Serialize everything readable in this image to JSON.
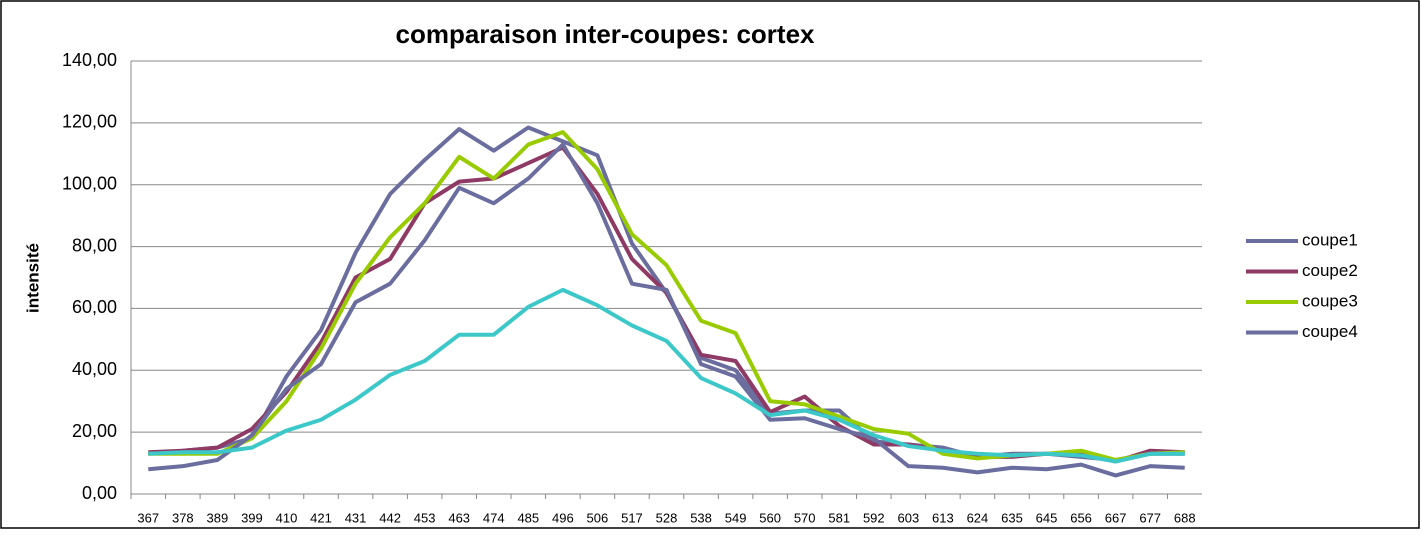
{
  "chart_data": {
    "type": "line",
    "title": "comparaison inter-coupes: cortex",
    "ylabel": "intensité",
    "categories": [
      "367",
      "378",
      "389",
      "399",
      "410",
      "421",
      "431",
      "442",
      "453",
      "463",
      "474",
      "485",
      "496",
      "506",
      "517",
      "528",
      "538",
      "549",
      "560",
      "570",
      "581",
      "592",
      "603",
      "613",
      "624",
      "635",
      "645",
      "656",
      "667",
      "677",
      "688"
    ],
    "series": [
      {
        "name": "coupe1",
        "color": "#6a6d9e",
        "values": [
          13,
          14,
          15,
          18,
          38,
          53,
          78,
          97,
          108,
          118,
          111,
          118.5,
          114,
          109.5,
          81,
          65,
          44,
          40,
          26,
          27,
          27,
          17,
          16,
          15,
          12,
          13,
          13,
          12,
          11,
          13,
          13
        ]
      },
      {
        "name": "coupe2",
        "color": "#8e3a64",
        "values": [
          13.5,
          14,
          15,
          21,
          33,
          49,
          70,
          76,
          94,
          101,
          102,
          107,
          112,
          97,
          76,
          65,
          45,
          43,
          26.5,
          31.5,
          22,
          16,
          16,
          14,
          12,
          12,
          13,
          13.5,
          10.5,
          14,
          13.5
        ]
      },
      {
        "name": "coupe3",
        "color": "#99cc00",
        "values": [
          13,
          13,
          13,
          18,
          30,
          47,
          68,
          83,
          94,
          109,
          102,
          113,
          117,
          105,
          84,
          74,
          56,
          52,
          30,
          29,
          25,
          21,
          19.5,
          13,
          11.5,
          12.5,
          13,
          14,
          11,
          13,
          13.5
        ]
      },
      {
        "name": "coupe4",
        "color": "#6a6d9e",
        "values": [
          8,
          9,
          11,
          19,
          34,
          42,
          62,
          68,
          82,
          99,
          94,
          102,
          113,
          94,
          68,
          66,
          42,
          38,
          24,
          24.5,
          21,
          18,
          9,
          8.5,
          7,
          8.5,
          8,
          9.5,
          6,
          9,
          8.5
        ]
      },
      {
        "name": null,
        "color": "#3cc8c8",
        "values": [
          13,
          13.5,
          13.5,
          15,
          20.5,
          24,
          30.5,
          38.5,
          43,
          51.5,
          51.5,
          60.5,
          66,
          61,
          54.5,
          49.5,
          37.5,
          32.5,
          25.5,
          27,
          24,
          19,
          15.5,
          14,
          13,
          12.5,
          13,
          12.5,
          10.5,
          13,
          13
        ]
      }
    ],
    "ylim": [
      0,
      140
    ],
    "yticks": [
      {
        "value": 0,
        "label": "0,00"
      },
      {
        "value": 20,
        "label": "20,00"
      },
      {
        "value": 40,
        "label": "40,00"
      },
      {
        "value": 60,
        "label": "60,00"
      },
      {
        "value": 80,
        "label": "80,00"
      },
      {
        "value": 100,
        "label": "100,00"
      },
      {
        "value": 120,
        "label": "120,00"
      },
      {
        "value": 140,
        "label": "140,00"
      }
    ],
    "grid": true,
    "legend": "right"
  }
}
